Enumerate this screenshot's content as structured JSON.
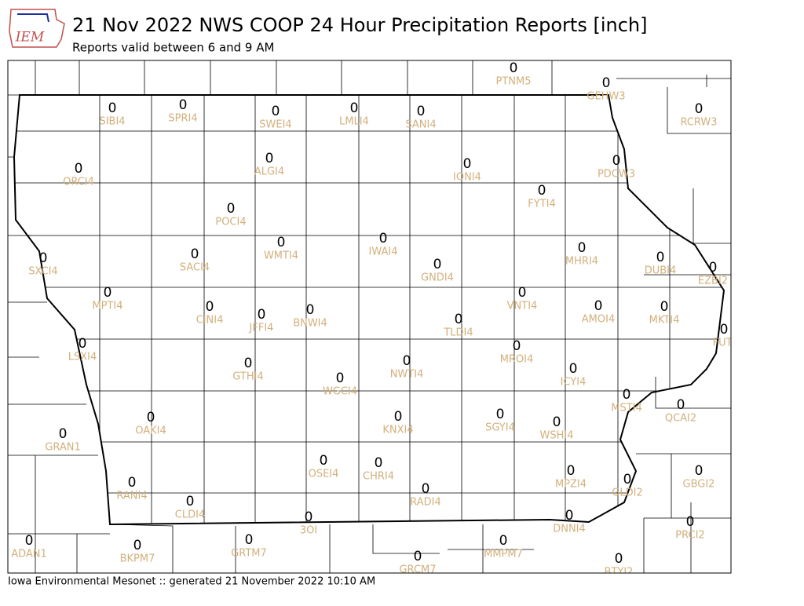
{
  "header": {
    "logo": "IEM",
    "title": "21 Nov 2022 NWS COOP 24 Hour Precipitation Reports [inch]",
    "subtitle": "Reports valid between 6 and 9 AM"
  },
  "stations": [
    {
      "id": "PTNM5",
      "value": 0
    },
    {
      "id": "GEHW3",
      "value": 0
    },
    {
      "id": "SIBI4",
      "value": 0
    },
    {
      "id": "SPRI4",
      "value": 0
    },
    {
      "id": "SWEI4",
      "value": 0
    },
    {
      "id": "LMLI4",
      "value": 0
    },
    {
      "id": "SANI4",
      "value": 0
    },
    {
      "id": "RCRW3",
      "value": 0
    },
    {
      "id": "ORCI4",
      "value": 0
    },
    {
      "id": "ALGI4",
      "value": 0
    },
    {
      "id": "IONI4",
      "value": 0
    },
    {
      "id": "PDCW3",
      "value": 0
    },
    {
      "id": "FYTI4",
      "value": 0
    },
    {
      "id": "POCI4",
      "value": 0
    },
    {
      "id": "WMTI4",
      "value": 0
    },
    {
      "id": "IWAI4",
      "value": 0
    },
    {
      "id": "SXCI4",
      "value": 0
    },
    {
      "id": "SACI4",
      "value": 0
    },
    {
      "id": "GNDI4",
      "value": 0
    },
    {
      "id": "MHRI4",
      "value": 0
    },
    {
      "id": "DUBI4",
      "value": 0
    },
    {
      "id": "EZBI2",
      "value": 0
    },
    {
      "id": "MPTI4",
      "value": 0
    },
    {
      "id": "VNTI4",
      "value": 0
    },
    {
      "id": "CINI4",
      "value": 0
    },
    {
      "id": "JFFI4",
      "value": 0
    },
    {
      "id": "BNWI4",
      "value": 0
    },
    {
      "id": "AMOI4",
      "value": 0
    },
    {
      "id": "MKTI4",
      "value": 0
    },
    {
      "id": "TLDI4",
      "value": 0
    },
    {
      "id": "FUTI",
      "value": 0
    },
    {
      "id": "LSXI4",
      "value": 0
    },
    {
      "id": "MROI4",
      "value": 0
    },
    {
      "id": "GTHI4",
      "value": 0
    },
    {
      "id": "NWTI4",
      "value": 0
    },
    {
      "id": "ICYI4",
      "value": 0
    },
    {
      "id": "WGCI4",
      "value": 0
    },
    {
      "id": "MSTI4",
      "value": 0
    },
    {
      "id": "QCAI2",
      "value": 0
    },
    {
      "id": "OAKI4",
      "value": 0
    },
    {
      "id": "KNXI4",
      "value": 0
    },
    {
      "id": "SGYI4",
      "value": 0
    },
    {
      "id": "WSHI4",
      "value": 0
    },
    {
      "id": "GRAN1",
      "value": 0
    },
    {
      "id": "OSEI4",
      "value": 0
    },
    {
      "id": "CHRI4",
      "value": 0
    },
    {
      "id": "MPZI4",
      "value": 0
    },
    {
      "id": "GBGI2",
      "value": 0
    },
    {
      "id": "RANI4",
      "value": 0
    },
    {
      "id": "RADI4",
      "value": 0
    },
    {
      "id": "GLDI2",
      "value": 0
    },
    {
      "id": "CLDI4",
      "value": 0
    },
    {
      "id": "DNNI4",
      "value": 0
    },
    {
      "id": "3OI",
      "value": 0
    },
    {
      "id": "PRCI2",
      "value": 0
    },
    {
      "id": "ADAN1",
      "value": 0
    },
    {
      "id": "GRTM7",
      "value": 0
    },
    {
      "id": "MMPM7",
      "value": 0
    },
    {
      "id": "BKPM7",
      "value": 0
    },
    {
      "id": "GRCM7",
      "value": 0
    },
    {
      "id": "BTYI2",
      "value": 0
    }
  ],
  "footer": "Iowa Environmental Mesonet :: generated 21 November 2022 10:10 AM"
}
